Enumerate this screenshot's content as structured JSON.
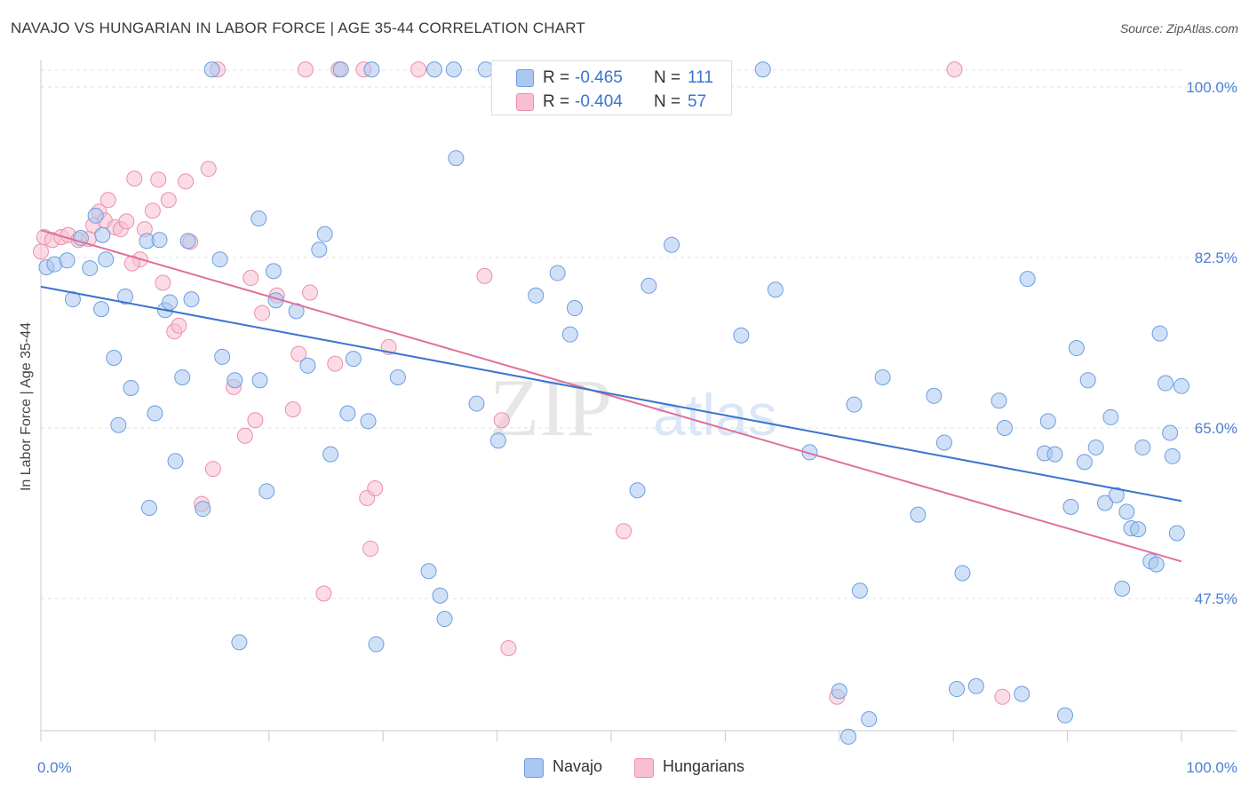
{
  "title": "NAVAJO VS HUNGARIAN IN LABOR FORCE | AGE 35-44 CORRELATION CHART",
  "source": "Source: ZipAtlas.com",
  "watermark": {
    "zip": "ZIP",
    "atlas": "atlas"
  },
  "colors": {
    "navajo_fill": "#aac8f0",
    "navajo_stroke": "#6d9de0",
    "navajo_line": "#3b74cf",
    "hung_fill": "#f7bfd0",
    "hung_stroke": "#ec8fac",
    "hung_line": "#e0709a",
    "tick_text": "#4a7fd4",
    "grid": "#e2e2e2"
  },
  "legend_top": [
    {
      "r_label": "R = ",
      "r_value": "-0.465",
      "n_label": "N = ",
      "n_value": "111"
    },
    {
      "r_label": "R = ",
      "r_value": "-0.404",
      "n_label": "N = ",
      "n_value": "57"
    }
  ],
  "legend_bottom": [
    "Navajo",
    "Hungarians"
  ],
  "chart_data": {
    "type": "scatter",
    "ylabel": "In Labor Force | Age 35-44",
    "xlabel": "",
    "xlim": [
      0,
      100
    ],
    "ylim": [
      30.0,
      102.0
    ],
    "x_tick_labels": [
      "0.0%",
      "100.0%"
    ],
    "y_ticks": [
      100.0,
      82.5,
      65.0,
      47.5
    ],
    "y_tick_labels": [
      "100.0%",
      "82.5%",
      "65.0%",
      "47.5%"
    ],
    "grid": true,
    "series": [
      {
        "name": "Navajo",
        "r": -0.465,
        "n": 111,
        "trend": {
          "x0": 0,
          "y0": 79.5,
          "x1": 100,
          "y1": 57.5
        },
        "points": [
          [
            0.5,
            81.5
          ],
          [
            1.2,
            81.8
          ],
          [
            2.3,
            82.2
          ],
          [
            2.8,
            78.2
          ],
          [
            3.5,
            84.5
          ],
          [
            4.3,
            81.4
          ],
          [
            4.8,
            86.8
          ],
          [
            5.4,
            84.8
          ],
          [
            5.7,
            82.3
          ],
          [
            5.3,
            77.2
          ],
          [
            6.4,
            72.2
          ],
          [
            6.8,
            65.3
          ],
          [
            7.4,
            78.5
          ],
          [
            7.9,
            69.1
          ],
          [
            9.3,
            84.2
          ],
          [
            9.5,
            56.8
          ],
          [
            10.0,
            66.5
          ],
          [
            10.4,
            84.3
          ],
          [
            10.9,
            77.1
          ],
          [
            11.3,
            77.9
          ],
          [
            11.8,
            61.6
          ],
          [
            12.4,
            70.2
          ],
          [
            12.9,
            84.2
          ],
          [
            13.2,
            78.2
          ],
          [
            14.2,
            56.7
          ],
          [
            15.7,
            82.3
          ],
          [
            15.9,
            72.3
          ],
          [
            17.0,
            69.9
          ],
          [
            17.4,
            43.0
          ],
          [
            19.1,
            86.5
          ],
          [
            19.2,
            69.9
          ],
          [
            19.8,
            58.5
          ],
          [
            20.4,
            81.1
          ],
          [
            20.6,
            78.1
          ],
          [
            22.4,
            77.0
          ],
          [
            23.4,
            71.4
          ],
          [
            24.4,
            83.3
          ],
          [
            24.9,
            84.9
          ],
          [
            25.4,
            62.3
          ],
          [
            26.9,
            66.5
          ],
          [
            27.4,
            72.1
          ],
          [
            28.7,
            65.7
          ],
          [
            29.4,
            42.8
          ],
          [
            31.3,
            70.2
          ],
          [
            34.0,
            50.3
          ],
          [
            35.0,
            47.8
          ],
          [
            35.4,
            45.4
          ],
          [
            36.4,
            92.7
          ],
          [
            38.2,
            67.5
          ],
          [
            40.1,
            63.7
          ],
          [
            43.4,
            78.6
          ],
          [
            45.3,
            80.9
          ],
          [
            46.4,
            74.6
          ],
          [
            46.8,
            77.3
          ],
          [
            52.3,
            58.6
          ],
          [
            53.3,
            79.6
          ],
          [
            55.3,
            83.8
          ],
          [
            61.4,
            74.5
          ],
          [
            64.4,
            79.2
          ],
          [
            67.4,
            62.5
          ],
          [
            70.0,
            38.0
          ],
          [
            70.8,
            33.3
          ],
          [
            71.3,
            67.4
          ],
          [
            71.8,
            48.3
          ],
          [
            72.6,
            35.1
          ],
          [
            73.8,
            70.2
          ],
          [
            76.9,
            56.1
          ],
          [
            78.3,
            68.3
          ],
          [
            79.2,
            63.5
          ],
          [
            80.3,
            38.2
          ],
          [
            80.8,
            50.1
          ],
          [
            82.0,
            38.5
          ],
          [
            84.0,
            67.8
          ],
          [
            84.5,
            65.0
          ],
          [
            86.0,
            37.7
          ],
          [
            86.5,
            80.3
          ],
          [
            88.0,
            62.4
          ],
          [
            88.3,
            65.7
          ],
          [
            88.9,
            62.3
          ],
          [
            89.8,
            35.5
          ],
          [
            90.3,
            56.9
          ],
          [
            90.8,
            73.2
          ],
          [
            91.5,
            61.5
          ],
          [
            91.8,
            69.9
          ],
          [
            92.5,
            63.0
          ],
          [
            93.3,
            57.3
          ],
          [
            93.8,
            66.1
          ],
          [
            94.3,
            58.1
          ],
          [
            94.8,
            48.5
          ],
          [
            95.2,
            56.4
          ],
          [
            95.6,
            54.7
          ],
          [
            96.2,
            54.6
          ],
          [
            96.6,
            63.0
          ],
          [
            97.3,
            51.3
          ],
          [
            97.8,
            51.0
          ],
          [
            98.1,
            74.7
          ],
          [
            98.6,
            69.6
          ],
          [
            99.0,
            64.5
          ],
          [
            99.2,
            62.1
          ],
          [
            99.6,
            54.2
          ],
          [
            100.0,
            69.3
          ],
          [
            15.0,
            102.0
          ],
          [
            26.3,
            102.0
          ],
          [
            34.5,
            102.0
          ],
          [
            36.2,
            102.0
          ],
          [
            39.0,
            102.0
          ],
          [
            63.3,
            102.0
          ],
          [
            53.0,
            102.0
          ],
          [
            29.0,
            102.0
          ],
          [
            50.0,
            102.0
          ],
          [
            57.0,
            102.0
          ]
        ]
      },
      {
        "name": "Hungarians",
        "r": -0.404,
        "n": 57,
        "trend": {
          "x0": 0,
          "y0": 85.3,
          "x1": 100,
          "y1": 51.3
        },
        "points": [
          [
            0.3,
            84.6
          ],
          [
            1.0,
            84.3
          ],
          [
            1.8,
            84.6
          ],
          [
            2.4,
            84.8
          ],
          [
            3.3,
            84.3
          ],
          [
            4.2,
            84.4
          ],
          [
            4.6,
            85.8
          ],
          [
            5.1,
            87.2
          ],
          [
            5.6,
            86.3
          ],
          [
            5.9,
            88.4
          ],
          [
            6.5,
            85.6
          ],
          [
            7.0,
            85.4
          ],
          [
            7.5,
            86.2
          ],
          [
            8.2,
            90.6
          ],
          [
            8.7,
            82.3
          ],
          [
            9.1,
            85.4
          ],
          [
            9.8,
            87.3
          ],
          [
            10.3,
            90.5
          ],
          [
            10.7,
            79.9
          ],
          [
            11.2,
            88.4
          ],
          [
            11.7,
            74.9
          ],
          [
            12.1,
            75.5
          ],
          [
            12.7,
            90.3
          ],
          [
            13.1,
            84.1
          ],
          [
            14.1,
            57.2
          ],
          [
            14.7,
            91.6
          ],
          [
            15.1,
            60.8
          ],
          [
            16.9,
            69.2
          ],
          [
            17.9,
            64.2
          ],
          [
            18.4,
            80.4
          ],
          [
            18.8,
            65.8
          ],
          [
            19.4,
            76.8
          ],
          [
            20.7,
            78.6
          ],
          [
            22.1,
            66.9
          ],
          [
            22.6,
            72.6
          ],
          [
            23.6,
            78.9
          ],
          [
            24.8,
            48.0
          ],
          [
            25.8,
            71.6
          ],
          [
            28.6,
            57.8
          ],
          [
            28.9,
            52.6
          ],
          [
            29.3,
            58.8
          ],
          [
            30.5,
            73.3
          ],
          [
            38.9,
            80.6
          ],
          [
            40.4,
            65.8
          ],
          [
            41.0,
            42.4
          ],
          [
            51.1,
            54.4
          ],
          [
            69.8,
            37.4
          ],
          [
            84.3,
            37.4
          ],
          [
            8.0,
            81.9
          ],
          [
            15.5,
            102.0
          ],
          [
            23.2,
            102.0
          ],
          [
            26.1,
            102.0
          ],
          [
            28.3,
            102.0
          ],
          [
            33.1,
            102.0
          ],
          [
            53.4,
            102.0
          ],
          [
            80.1,
            102.0
          ],
          [
            0.0,
            83.1
          ]
        ]
      }
    ]
  }
}
